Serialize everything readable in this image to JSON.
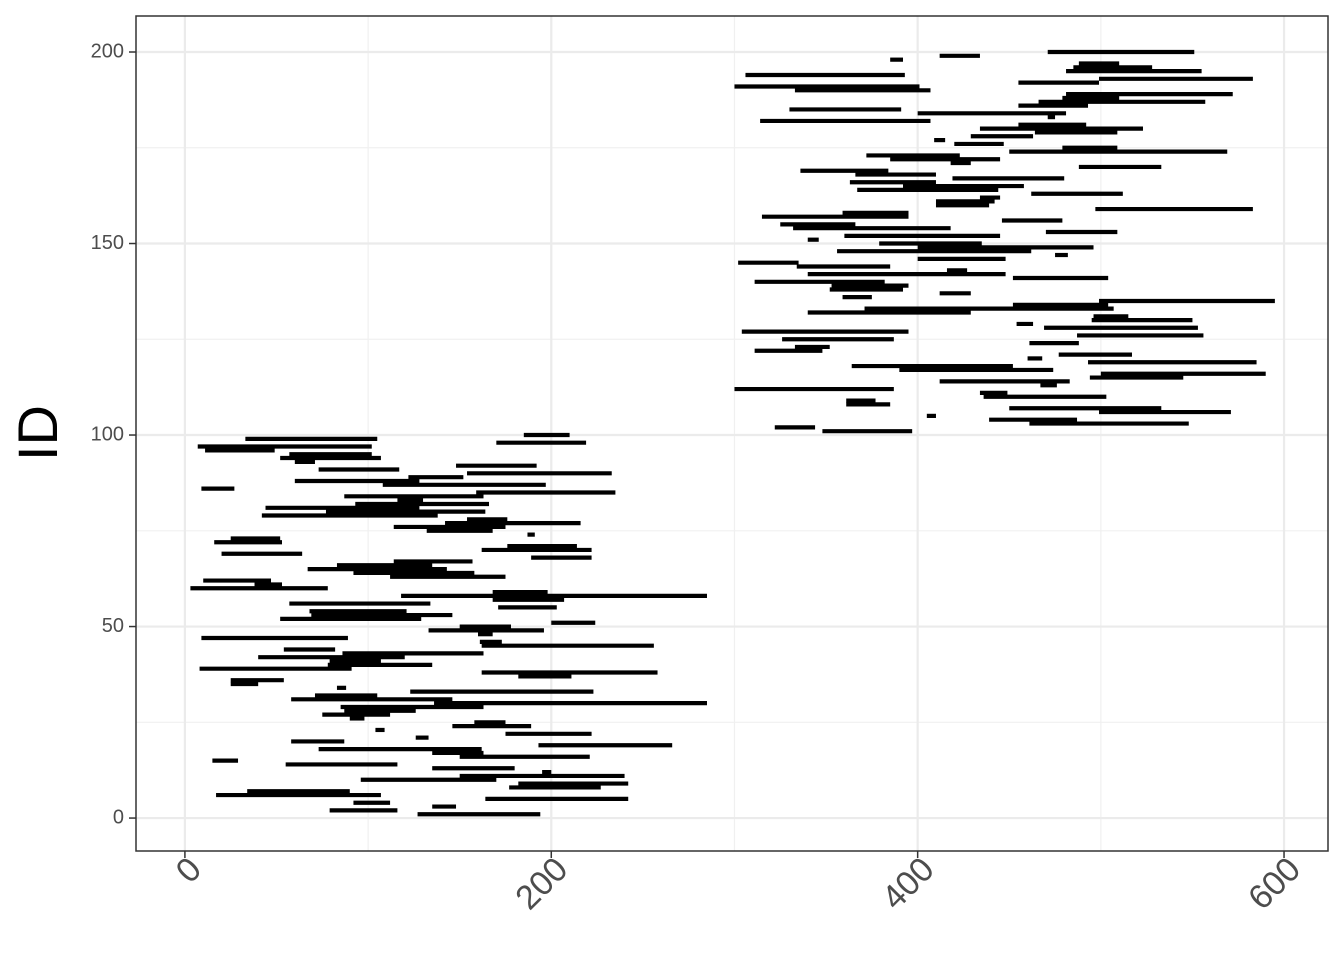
{
  "chart_data": {
    "type": "segment",
    "ylabel": "ID",
    "y": [
      1,
      2,
      3,
      4,
      5,
      6,
      7,
      8,
      9,
      10,
      11,
      12,
      13,
      14,
      15,
      16,
      17,
      18,
      19,
      20,
      21,
      22,
      23,
      24,
      25,
      26,
      27,
      28,
      29,
      30,
      31,
      32,
      33,
      34,
      35,
      36,
      37,
      38,
      39,
      40,
      41,
      42,
      43,
      44,
      45,
      46,
      47,
      48,
      49,
      50,
      51,
      52,
      53,
      54,
      55,
      56,
      57,
      58,
      59,
      60,
      61,
      62,
      63,
      64,
      65,
      66,
      67,
      68,
      69,
      70,
      71,
      72,
      73,
      74,
      75,
      76,
      77,
      78,
      79,
      80,
      81,
      82,
      83,
      84,
      85,
      86,
      87,
      88,
      89,
      90,
      91,
      92,
      93,
      94,
      95,
      96,
      97,
      98,
      99,
      100,
      101,
      102,
      103,
      104,
      105,
      106,
      107,
      108,
      109,
      110,
      111,
      112,
      113,
      114,
      115,
      116,
      117,
      118,
      119,
      120,
      121,
      122,
      123,
      124,
      125,
      126,
      127,
      128,
      129,
      130,
      131,
      132,
      133,
      134,
      135,
      136,
      137,
      138,
      139,
      140,
      141,
      142,
      143,
      144,
      145,
      146,
      147,
      148,
      149,
      150,
      151,
      152,
      153,
      154,
      155,
      156,
      157,
      158,
      159,
      160,
      161,
      162,
      163,
      164,
      165,
      166,
      167,
      168,
      169,
      170,
      171,
      172,
      173,
      174,
      175,
      176,
      177,
      178,
      179,
      180,
      181,
      182,
      183,
      184,
      185,
      186,
      187,
      188,
      189,
      190,
      191,
      192,
      193,
      194,
      195,
      196,
      197,
      198,
      199,
      200
    ],
    "x_start": [
      127,
      79,
      135,
      92,
      164,
      17,
      34,
      177,
      182,
      96,
      150,
      195,
      135,
      55,
      15,
      150,
      135,
      73,
      193,
      58,
      126,
      175,
      104,
      146,
      158,
      90,
      75,
      87,
      85,
      136,
      58,
      71,
      123,
      83,
      25,
      25,
      182,
      162,
      8,
      78,
      79,
      40,
      86,
      54,
      162,
      161,
      9,
      160,
      133,
      150,
      200,
      52,
      69,
      68,
      171,
      57,
      168,
      118,
      168,
      3,
      38,
      10,
      112,
      92,
      67,
      83,
      114,
      189,
      20,
      162,
      176,
      16,
      25,
      187,
      132,
      114,
      142,
      154,
      42,
      77,
      44,
      93,
      116,
      87,
      159,
      9,
      108,
      60,
      122,
      154,
      73,
      148,
      60,
      52,
      57,
      11,
      7,
      170,
      33,
      185,
      348,
      322,
      461,
      439,
      405,
      499,
      450,
      361,
      361,
      436,
      434,
      300,
      467,
      412,
      494,
      500,
      390,
      364,
      493,
      460,
      477,
      311,
      333,
      461,
      326,
      487,
      304,
      469,
      454,
      495,
      496,
      340,
      371,
      452,
      499,
      359,
      412,
      352,
      353,
      311,
      452,
      340,
      416,
      334,
      302,
      400,
      475,
      356,
      400,
      379,
      340,
      360,
      470,
      332,
      325,
      446,
      315,
      359,
      497,
      410,
      410,
      434,
      462,
      367,
      392,
      363,
      419,
      366,
      336,
      488,
      418,
      385,
      372,
      450,
      479,
      420,
      409,
      429,
      464,
      434,
      455,
      314,
      471,
      400,
      330,
      455,
      466,
      479,
      481,
      333,
      300,
      455,
      499,
      306,
      481,
      485,
      488,
      385,
      412,
      471
    ],
    "x_end": [
      194,
      116,
      148,
      112,
      242,
      107,
      90,
      227,
      242,
      170,
      240,
      200,
      180,
      116,
      29,
      221,
      163,
      162,
      266,
      87,
      133,
      222,
      109,
      189,
      175,
      98,
      112,
      126,
      163,
      285,
      146,
      105,
      223,
      88,
      40,
      54,
      211,
      258,
      91,
      135,
      107,
      120,
      163,
      82,
      256,
      173,
      89,
      168,
      196,
      178,
      224,
      129,
      146,
      121,
      203,
      134,
      207,
      285,
      198,
      78,
      53,
      47,
      175,
      158,
      143,
      135,
      157,
      222,
      64,
      222,
      214,
      53,
      52,
      191,
      168,
      175,
      216,
      176,
      138,
      164,
      128,
      166,
      130,
      163,
      235,
      27,
      197,
      128,
      152,
      233,
      117,
      192,
      71,
      107,
      102,
      49,
      102,
      219,
      105,
      210,
      397,
      344,
      548,
      487,
      410,
      571,
      533,
      385,
      377,
      503,
      449,
      387,
      476,
      483,
      545,
      590,
      474,
      452,
      585,
      468,
      517,
      348,
      352,
      488,
      387,
      556,
      395,
      553,
      463,
      550,
      515,
      429,
      507,
      504,
      595,
      375,
      429,
      392,
      395,
      382,
      504,
      448,
      427,
      385,
      335,
      448,
      482,
      462,
      496,
      435,
      346,
      445,
      509,
      418,
      366,
      479,
      395,
      395,
      583,
      439,
      442,
      445,
      512,
      444,
      458,
      410,
      480,
      410,
      384,
      533,
      429,
      445,
      423,
      569,
      509,
      447,
      415,
      463,
      509,
      523,
      492,
      407,
      475,
      481,
      391,
      493,
      557,
      510,
      572,
      407,
      401,
      499,
      583,
      393,
      555,
      528,
      510,
      392,
      434,
      551
    ],
    "color": "#000000",
    "xlim": [
      -26.7,
      624
    ],
    "ylim": [
      -8.6,
      209.4
    ],
    "xticks": [
      0,
      200,
      400,
      600
    ],
    "yticks": [
      0,
      50,
      100,
      150,
      200
    ],
    "xminor": [
      100,
      300,
      500
    ],
    "yminor": [
      25,
      75,
      125,
      175
    ],
    "grid": true
  }
}
